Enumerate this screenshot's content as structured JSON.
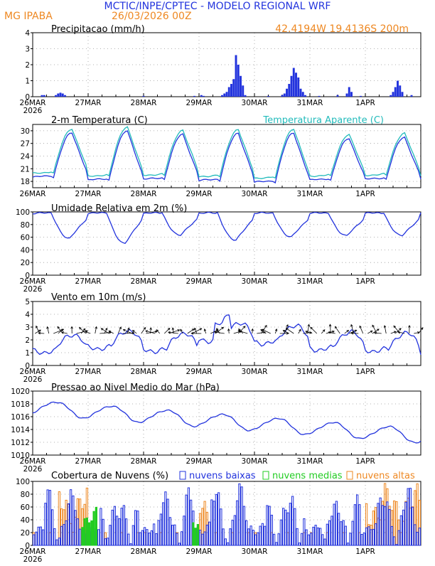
{
  "header": {
    "title": "MCTIC/INPE/CPTEC - MODELO REGIONAL WRF",
    "location": "MG IPABA",
    "run": "26/03/2026 00Z",
    "coords": "42.4194W 19.4136S 200m"
  },
  "colors": {
    "title": "#2233dd",
    "orange": "#ee8822",
    "blue": "#2233dd",
    "cyan": "#22bbbb",
    "green": "#22cc22",
    "black": "#000000"
  },
  "x_axis": {
    "labels": [
      "26MAR",
      "27MAR",
      "28MAR",
      "29MAR",
      "30MAR",
      "31MAR",
      "1APR"
    ],
    "year": "2026",
    "hours_total": 168
  },
  "chart_data": [
    {
      "type": "bar",
      "id": "precip",
      "title": "Precipitacao (mm/h)",
      "ylim": [
        0,
        4
      ],
      "yticks": [
        "0",
        "1",
        "2",
        "3",
        "4"
      ],
      "x_hours": [
        [
          4,
          0.1
        ],
        [
          5,
          0.1
        ],
        [
          10,
          0.1
        ],
        [
          11,
          0.2
        ],
        [
          12,
          0.25
        ],
        [
          13,
          0.2
        ],
        [
          14,
          0.1
        ],
        [
          48,
          0.05
        ],
        [
          70,
          0.05
        ],
        [
          73,
          0.1
        ],
        [
          74,
          0.05
        ],
        [
          82,
          0.1
        ],
        [
          83,
          0.2
        ],
        [
          84,
          0.3
        ],
        [
          85,
          0.6
        ],
        [
          86,
          0.8
        ],
        [
          87,
          1.1
        ],
        [
          88,
          2.6
        ],
        [
          89,
          2.0
        ],
        [
          90,
          1.3
        ],
        [
          91,
          0.7
        ],
        [
          92,
          0.1
        ],
        [
          102,
          0.05
        ],
        [
          108,
          0.1
        ],
        [
          109,
          0.2
        ],
        [
          110,
          0.5
        ],
        [
          111,
          0.8
        ],
        [
          112,
          1.3
        ],
        [
          113,
          1.8
        ],
        [
          114,
          1.5
        ],
        [
          115,
          1.2
        ],
        [
          116,
          0.5
        ],
        [
          117,
          0.3
        ],
        [
          118,
          0.1
        ],
        [
          124,
          0.05
        ],
        [
          132,
          0.1
        ],
        [
          136,
          0.2
        ],
        [
          137,
          0.6
        ],
        [
          138,
          0.3
        ],
        [
          142,
          0.05
        ],
        [
          155,
          0.1
        ],
        [
          156,
          0.3
        ],
        [
          157,
          0.6
        ],
        [
          158,
          1.0
        ],
        [
          159,
          0.7
        ],
        [
          160,
          0.3
        ],
        [
          164,
          0.1
        ]
      ]
    },
    {
      "type": "line",
      "id": "temp",
      "title": "2-m Temperatura (C)",
      "title_right": "Temperatura Aparente (C)",
      "ylim": [
        16.5,
        31.5
      ],
      "yticks": [
        "18",
        "21",
        "24",
        "27",
        "30"
      ],
      "series": [
        {
          "name": "Temperatura",
          "color": "blue",
          "min": 18.5,
          "max": 29.3,
          "offset": 0.0
        },
        {
          "name": "Temperatura Aparente",
          "color": "cyan",
          "min": 19.3,
          "max": 30.3,
          "offset": 0.6
        }
      ]
    },
    {
      "type": "line",
      "id": "rh",
      "title": "Umidade Relativa em 2m (%)",
      "ylim": [
        0,
        100
      ],
      "yticks": [
        "0",
        "20",
        "40",
        "60",
        "80",
        "100"
      ],
      "series": [
        {
          "name": "Umidade",
          "color": "blue",
          "daily_min": [
            58,
            50,
            63,
            55,
            60,
            62,
            62
          ]
        }
      ]
    },
    {
      "type": "line",
      "id": "wind",
      "title": "Vento em 10m (m/s)",
      "ylim": [
        0,
        5
      ],
      "yticks": [
        "0",
        "1",
        "2",
        "3",
        "4",
        "5"
      ],
      "series": [
        {
          "name": "Velocidade",
          "color": "blue"
        }
      ]
    },
    {
      "type": "line",
      "id": "pres",
      "title": "Pressao ao Nivel Medio do Mar (hPa)",
      "ylim": [
        1010,
        1020
      ],
      "yticks": [
        "1010",
        "1012",
        "1014",
        "1016",
        "1018",
        "1020"
      ],
      "series": [
        {
          "name": "Pressao",
          "color": "blue"
        }
      ]
    },
    {
      "type": "bar",
      "id": "cloud",
      "title": "Cobertura de Nuvens (%)",
      "ylim": [
        0,
        100
      ],
      "yticks": [
        "0",
        "20",
        "40",
        "60",
        "80",
        "100"
      ],
      "legend": [
        "nuvens baixas",
        "nuvens medias",
        "nuvens altas"
      ]
    }
  ]
}
